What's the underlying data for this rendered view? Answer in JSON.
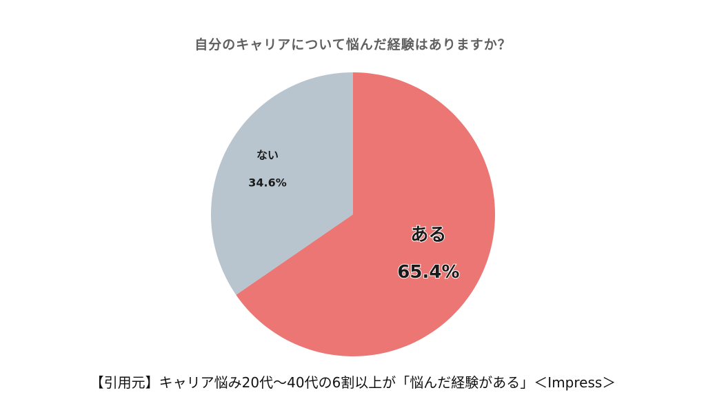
{
  "chart_data": {
    "type": "pie",
    "title": "自分のキャリアについて悩んだ経験はありますか？",
    "slices": [
      {
        "name": "ある",
        "value": 65.4,
        "label": "65.4%",
        "color": "#ec7673"
      },
      {
        "name": "ない",
        "value": 34.6,
        "label": "34.6%",
        "color": "#b8c5cf"
      }
    ],
    "start_angle_deg": 0,
    "direction": "clockwise"
  },
  "caption": "【引用元】キャリア悩み20代〜40代の6割以上が「悩んだ経験がある」＜Impress＞"
}
